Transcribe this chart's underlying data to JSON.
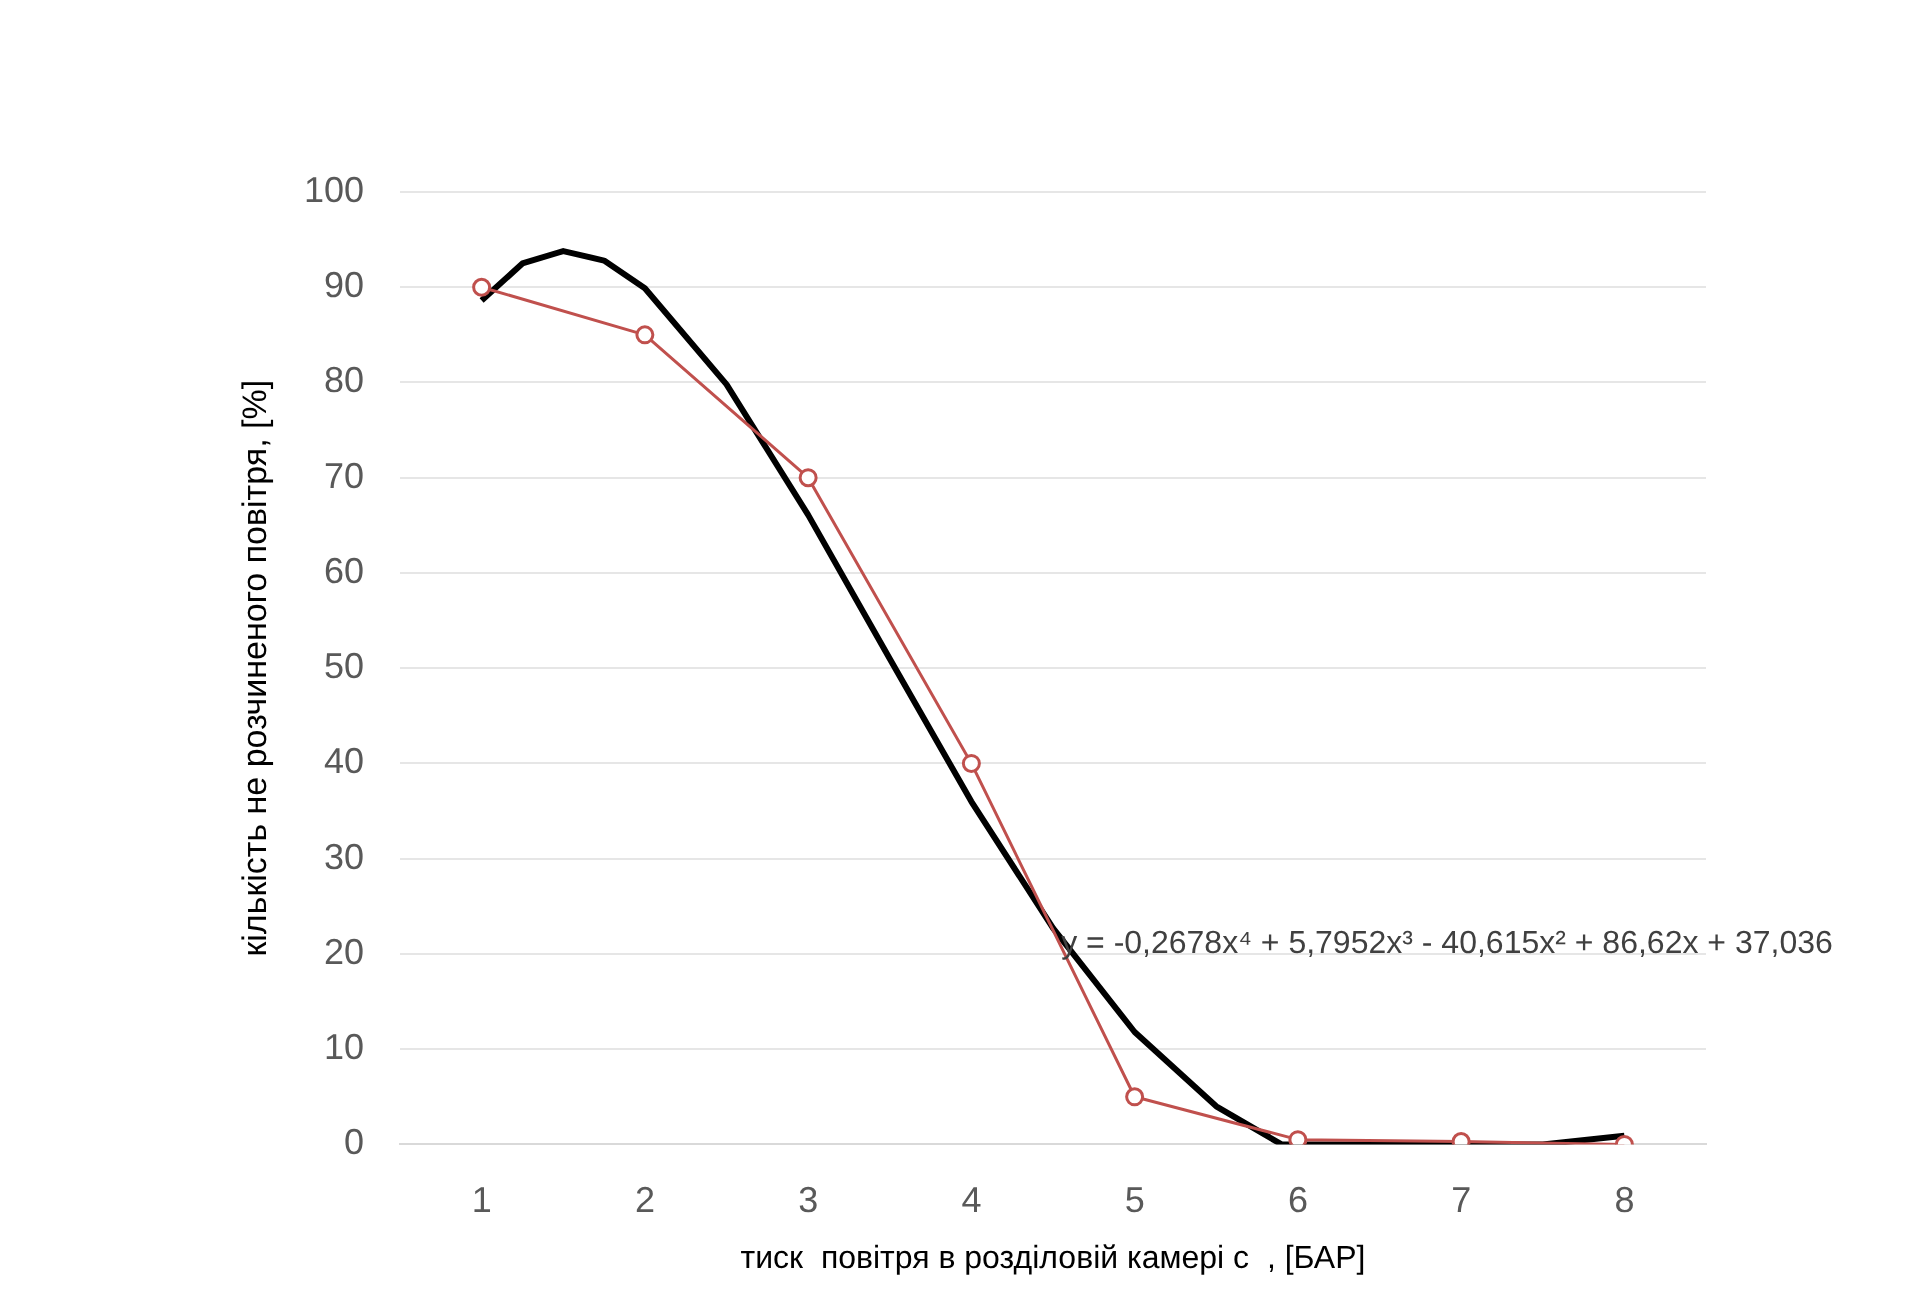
{
  "chart_data": {
    "type": "line",
    "xlabel": "тиск  повітря в розділовій камері с  , [БАР]",
    "ylabel": "кількість не розчиненого повітря, [%]",
    "x": [
      1,
      2,
      3,
      4,
      5,
      6,
      7,
      8
    ],
    "series": [
      {
        "color": "#c0504d",
        "marker": "circle",
        "values": [
          90,
          85,
          70,
          40,
          5,
          0.5,
          0.3,
          0
        ]
      },
      {
        "color": "#000000",
        "marker": "none",
        "x": [
          1,
          1.25,
          1.5,
          1.75,
          2,
          2.5,
          3,
          3.5,
          4,
          4.5,
          5,
          5.5,
          5.9,
          6.5,
          7,
          7.5,
          8
        ],
        "values": [
          88.6,
          92.5,
          93.8,
          92.8,
          89.9,
          79.8,
          66.1,
          51,
          36,
          22.7,
          11.8,
          4,
          0,
          0,
          0,
          0,
          0.9
        ]
      }
    ],
    "xlim": [
      0.5,
      8.5
    ],
    "xticks": [
      1,
      2,
      3,
      4,
      5,
      6,
      7,
      8
    ],
    "ylim": [
      0,
      100
    ],
    "yticks": [
      0,
      10,
      20,
      30,
      40,
      50,
      60,
      70,
      80,
      90,
      100
    ],
    "grid": "y",
    "legend": false,
    "line_style": "solid",
    "annotations": [
      {
        "text": "y = -0,2678x⁴ + 5,7952x³ - 40,615x² + 86,62x + 37,036",
        "x": 4.55,
        "y": 21
      }
    ]
  }
}
